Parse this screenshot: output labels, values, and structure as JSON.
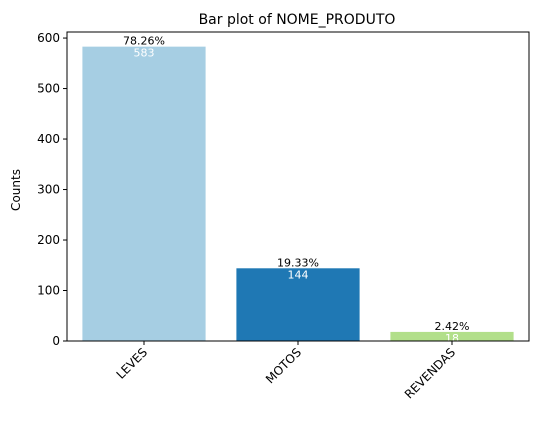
{
  "chart_data": {
    "type": "bar",
    "title": "Bar plot of NOME_PRODUTO",
    "xlabel": "",
    "ylabel": "Counts",
    "categories": [
      "LEVES",
      "MOTOS",
      "REVENDAS"
    ],
    "values": [
      583,
      144,
      18
    ],
    "percent_labels": [
      "78.26%",
      "19.33%",
      "2.42%"
    ],
    "count_labels": [
      "583",
      "144",
      "18"
    ],
    "colors": [
      "#a6cee3",
      "#1f78b4",
      "#b2df8a"
    ],
    "ylim": [
      0,
      612
    ],
    "yticks": [
      0,
      100,
      200,
      300,
      400,
      500,
      600
    ],
    "x_tick_rotation_deg": 45,
    "grid": false,
    "legend": "none"
  }
}
